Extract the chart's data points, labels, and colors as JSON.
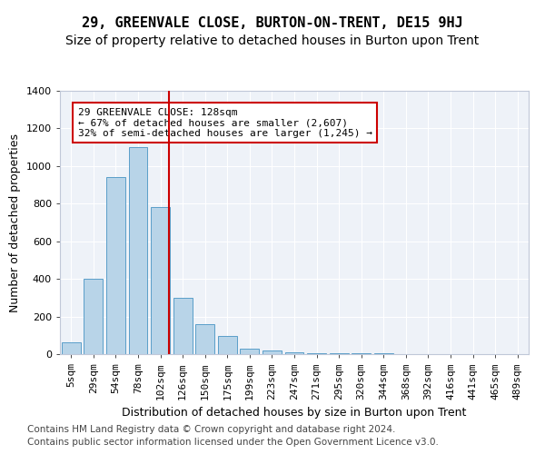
{
  "title": "29, GREENVALE CLOSE, BURTON-ON-TRENT, DE15 9HJ",
  "subtitle": "Size of property relative to detached houses in Burton upon Trent",
  "xlabel": "Distribution of detached houses by size in Burton upon Trent",
  "ylabel": "Number of detached properties",
  "bins": [
    "5sqm",
    "29sqm",
    "54sqm",
    "78sqm",
    "102sqm",
    "126sqm",
    "150sqm",
    "175sqm",
    "199sqm",
    "223sqm",
    "247sqm",
    "271sqm",
    "295sqm",
    "320sqm",
    "344sqm",
    "368sqm",
    "392sqm",
    "416sqm",
    "441sqm",
    "465sqm",
    "489sqm"
  ],
  "bar_values": [
    65,
    400,
    940,
    1100,
    780,
    300,
    160,
    95,
    30,
    20,
    10,
    5,
    5,
    5,
    3,
    2,
    2,
    1,
    1,
    1,
    0
  ],
  "bar_color": "#b8d4e8",
  "bar_edgecolor": "#5a9ec9",
  "annotation_text": "29 GREENVALE CLOSE: 128sqm\n← 67% of detached houses are smaller (2,607)\n32% of semi-detached houses are larger (1,245) →",
  "annotation_box_color": "#ffffff",
  "annotation_box_edgecolor": "#cc0000",
  "vline_color": "#cc0000",
  "vline_x": 4.4,
  "ylim": [
    0,
    1400
  ],
  "yticks": [
    0,
    200,
    400,
    600,
    800,
    1000,
    1200,
    1400
  ],
  "footer1": "Contains HM Land Registry data © Crown copyright and database right 2024.",
  "footer2": "Contains public sector information licensed under the Open Government Licence v3.0.",
  "plot_background": "#eef2f8",
  "title_fontsize": 11,
  "subtitle_fontsize": 10,
  "xlabel_fontsize": 9,
  "ylabel_fontsize": 9,
  "tick_fontsize": 8,
  "footer_fontsize": 7.5
}
